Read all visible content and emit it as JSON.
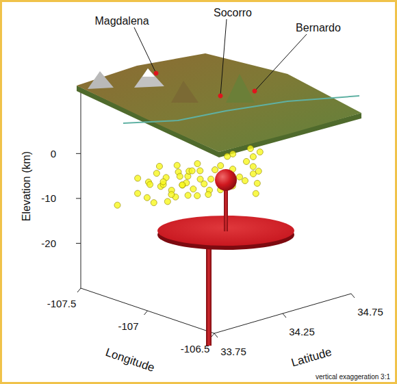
{
  "chart_data": {
    "type": "scatter3d",
    "x_label": "Longitude",
    "y_label": "Latitude",
    "z_label": "Elevation (km)",
    "xlim": [
      -107.5,
      -106.5
    ],
    "xticks": [
      -107.5,
      -107,
      -106.5
    ],
    "ylim": [
      33.75,
      34.75
    ],
    "yticks": [
      33.75,
      34.25,
      34.75
    ],
    "zlim": [
      -30,
      15
    ],
    "zticks": [
      -20,
      -10,
      0
    ],
    "color": "#f7f71e",
    "marker": "circle",
    "places": [
      "Magdalena",
      "Socorro",
      "Bernardo"
    ],
    "note": "vertical exaggeration 3:1",
    "points": [
      [
        -107.33,
        34.0,
        -6
      ],
      [
        -107.31,
        33.98,
        -9
      ],
      [
        -107.3,
        34.05,
        -7
      ],
      [
        -107.28,
        34.02,
        -10
      ],
      [
        -107.27,
        34.08,
        -5
      ],
      [
        -107.26,
        34.1,
        -8
      ],
      [
        -107.25,
        34.04,
        -11
      ],
      [
        -107.24,
        34.12,
        -6
      ],
      [
        -107.23,
        34.15,
        -9
      ],
      [
        -107.22,
        34.08,
        -7
      ],
      [
        -107.21,
        34.18,
        -5
      ],
      [
        -107.2,
        34.2,
        -8
      ],
      [
        -107.19,
        34.14,
        -10
      ],
      [
        -107.18,
        34.22,
        -6
      ],
      [
        -107.17,
        34.25,
        -9
      ],
      [
        -107.16,
        34.19,
        -7
      ],
      [
        -107.15,
        34.28,
        -5
      ],
      [
        -107.14,
        34.3,
        -8
      ],
      [
        -107.13,
        34.24,
        -10
      ],
      [
        -107.12,
        34.33,
        -7
      ],
      [
        -107.11,
        34.35,
        -5
      ],
      [
        -107.1,
        34.3,
        -9
      ],
      [
        -107.29,
        34.12,
        -4
      ],
      [
        -107.27,
        34.16,
        -12
      ],
      [
        -107.24,
        34.2,
        -4
      ],
      [
        -107.22,
        34.26,
        -11
      ],
      [
        -107.19,
        34.3,
        -4
      ],
      [
        -107.16,
        34.35,
        -11
      ],
      [
        -107.32,
        34.08,
        -8
      ],
      [
        -107.2,
        34.06,
        -6
      ],
      [
        -107.18,
        34.1,
        -9
      ],
      [
        -107.15,
        34.15,
        -7
      ],
      [
        -107.13,
        34.18,
        -4
      ],
      [
        -107.26,
        34.24,
        -7
      ],
      [
        -107.23,
        34.3,
        -6
      ],
      [
        -107.21,
        34.34,
        -8
      ],
      [
        -107.08,
        34.58,
        -2
      ],
      [
        -107.08,
        34.6,
        -4
      ],
      [
        -107.07,
        34.59,
        -6
      ],
      [
        -107.09,
        34.61,
        -8
      ],
      [
        -107.07,
        34.62,
        -10
      ],
      [
        -107.06,
        34.6,
        -12
      ],
      [
        -107.1,
        34.57,
        -5
      ],
      [
        -107.09,
        34.55,
        -9
      ],
      [
        -107.06,
        34.63,
        -3
      ],
      [
        -107.05,
        34.61,
        -7
      ],
      [
        -107.12,
        34.45,
        -3
      ],
      [
        -107.11,
        34.48,
        -6
      ],
      [
        -107.13,
        34.5,
        -3
      ],
      [
        -107.1,
        34.52,
        -8
      ],
      [
        -107.14,
        34.42,
        -5
      ],
      [
        -107.12,
        34.4,
        -10
      ],
      [
        -107.09,
        34.4,
        -7
      ],
      [
        -107.07,
        34.44,
        -9
      ],
      [
        -107.06,
        34.38,
        -6
      ],
      [
        -107.05,
        34.42,
        -8
      ],
      [
        -107.4,
        33.92,
        -12
      ]
    ]
  }
}
